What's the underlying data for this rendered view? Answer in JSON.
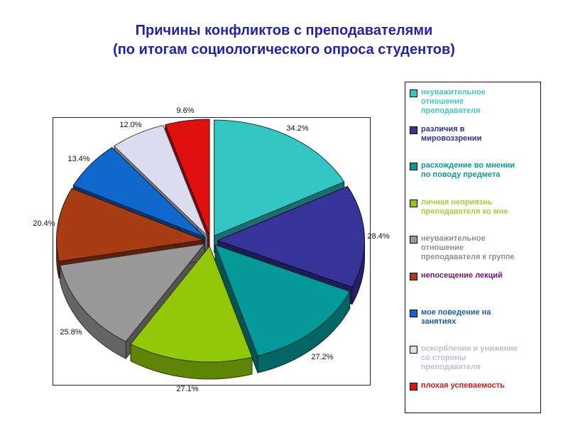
{
  "title": {
    "line1": "Причины конфликтов с преподавателями",
    "line2": "(по итогам социологического опроса студентов)",
    "color": "#2222AC"
  },
  "chart_data": {
    "type": "pie",
    "style": "3d-exploded",
    "unit": "%",
    "start_angle_deg": 0,
    "direction": "clockwise",
    "legend_position": "right",
    "note": "percent labels are survey response rates; slice angles are proportional to values",
    "slices": [
      {
        "label": "неуважительное отношение преподавателя",
        "value": 34.2,
        "pct_label": "34.2%",
        "color": "#33C7C4",
        "text_color": "#3FC8C4"
      },
      {
        "label": "различия в мировоззрении",
        "value": 28.4,
        "pct_label": "28.4%",
        "color": "#363399",
        "text_color": "#312F9B"
      },
      {
        "label": "расхождение во мнении по поводу предмета",
        "value": 27.2,
        "pct_label": "27.2%",
        "color": "#059997",
        "text_color": "#0A9A98"
      },
      {
        "label": "личная неприязнь преподавателя ко мне",
        "value": 27.1,
        "pct_label": "27.1%",
        "color": "#92C808",
        "text_color": "#A6CE39"
      },
      {
        "label": "неуважительное отношение преподавателя к группе",
        "value": 25.8,
        "pct_label": "25.8%",
        "color": "#999999",
        "text_color": "#909090"
      },
      {
        "label": "непосещение лекций",
        "value": 20.4,
        "pct_label": "20.4%",
        "color": "#A83C12",
        "text_color": "#7C0E7C"
      },
      {
        "label": "мое поведение на занятиях",
        "value": 13.4,
        "pct_label": "13.4%",
        "color": "#1168CC",
        "text_color": "#1A5FA0"
      },
      {
        "label": "оскорбление и унижение со стороны преподавателя",
        "value": 12.0,
        "pct_label": "12.0%",
        "color": "#DDDDF2",
        "text_color": "#BEBED6"
      },
      {
        "label": "плохая успеваемость",
        "value": 9.6,
        "pct_label": "9.6%",
        "color": "#E01010",
        "text_color": "#CC1A1A"
      }
    ]
  }
}
